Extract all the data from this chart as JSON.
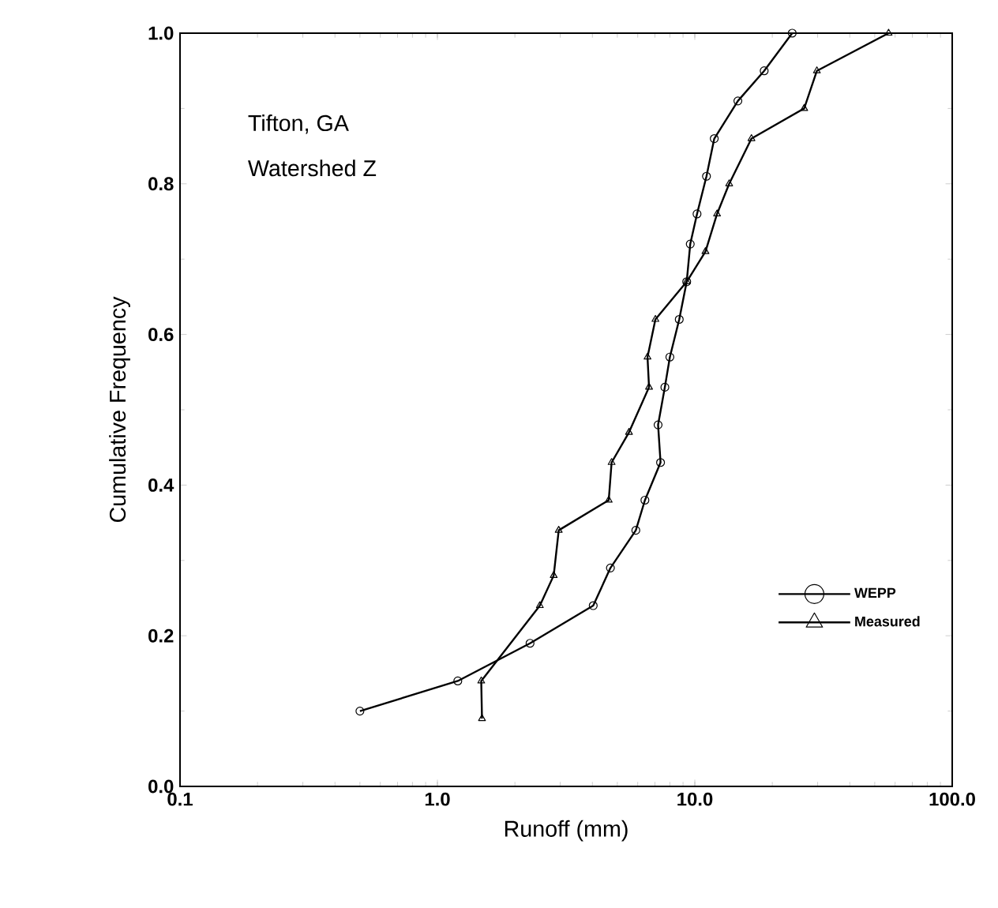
{
  "chart_data": {
    "type": "line",
    "xlabel": "Runoff (mm)",
    "ylabel": "Cumulative Frequency",
    "annotations": [
      "Tifton, GA",
      "Watershed Z"
    ],
    "log": "x",
    "grid": false,
    "legend": "bottom right",
    "xlim": [
      0.1,
      100
    ],
    "ylim": [
      0,
      1
    ],
    "xticks": [
      0.1,
      {
        "value": 1,
        "label": "1.0"
      },
      {
        "value": 10,
        "label": "10.0"
      },
      {
        "value": 100,
        "label": "100.0"
      }
    ],
    "yticks": [
      {
        "value": 0,
        "label": "0.0"
      },
      0.2,
      0.4,
      0.6,
      0.8,
      {
        "value": 1,
        "label": "1.0"
      }
    ],
    "series": [
      {
        "name": "WEPP",
        "color": "#000000",
        "marker": "circle",
        "x": [
          0.5,
          1.2,
          2.29,
          4.03,
          4.7,
          5.9,
          6.4,
          7.36,
          7.2,
          7.65,
          8.0,
          8.7,
          9.3,
          9.6,
          10.2,
          11.1,
          11.9,
          14.7,
          18.6,
          23.9
        ],
        "values": [
          0.1,
          0.14,
          0.19,
          0.24,
          0.29,
          0.34,
          0.38,
          0.43,
          0.48,
          0.53,
          0.57,
          0.62,
          0.67,
          0.72,
          0.76,
          0.81,
          0.86,
          0.91,
          0.95,
          1.0
        ]
      },
      {
        "name": "Measured",
        "color": "#000000",
        "marker": "triangle",
        "x": [
          1.49,
          1.48,
          2.5,
          2.83,
          2.96,
          4.63,
          4.75,
          5.55,
          6.64,
          6.55,
          7.03,
          9.3,
          11.0,
          12.2,
          13.6,
          16.6,
          26.6,
          29.8,
          56.6
        ],
        "values": [
          0.09,
          0.14,
          0.24,
          0.28,
          0.34,
          0.38,
          0.43,
          0.47,
          0.53,
          0.57,
          0.62,
          0.67,
          0.71,
          0.76,
          0.8,
          0.86,
          0.9,
          0.95,
          1.0
        ]
      }
    ]
  }
}
